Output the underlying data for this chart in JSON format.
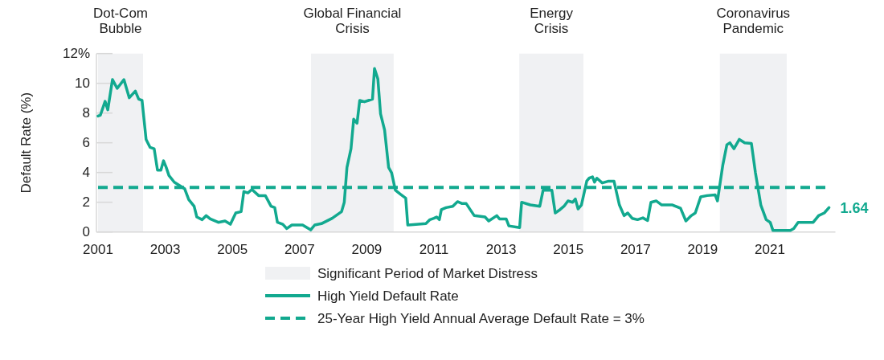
{
  "chart_data": {
    "type": "line",
    "ylabel": "Default Rate (%)",
    "xlim": [
      2001,
      2022.95
    ],
    "ylim": [
      0,
      12
    ],
    "xticks": [
      2001,
      2003,
      2005,
      2007,
      2009,
      2011,
      2013,
      2015,
      2017,
      2019,
      2021
    ],
    "yticks": [
      0,
      2,
      4,
      6,
      8,
      10,
      {
        "value": 12,
        "label": "12%"
      }
    ],
    "legend": "bottom",
    "series": [
      {
        "name": "High Yield Default Rate",
        "color": "#12a98f",
        "x": [
          2001.0,
          2001.07,
          2001.21,
          2001.29,
          2001.43,
          2001.57,
          2001.77,
          2001.93,
          2002.11,
          2002.21,
          2002.31,
          2002.43,
          2002.55,
          2002.67,
          2002.77,
          2002.87,
          2002.95,
          2003.03,
          2003.11,
          2003.27,
          2003.46,
          2003.58,
          2003.7,
          2003.86,
          2003.94,
          2004.1,
          2004.22,
          2004.34,
          2004.58,
          2004.78,
          2004.94,
          2005.1,
          2005.26,
          2005.34,
          2005.46,
          2005.58,
          2005.78,
          2005.98,
          2006.15,
          2006.26,
          2006.34,
          2006.5,
          2006.62,
          2006.77,
          2007.09,
          2007.33,
          2007.45,
          2007.65,
          2007.97,
          2008.25,
          2008.33,
          2008.41,
          2008.53,
          2008.61,
          2008.71,
          2008.79,
          2008.93,
          2009.05,
          2009.17,
          2009.23,
          2009.33,
          2009.41,
          2009.53,
          2009.65,
          2009.74,
          2009.85,
          2010.0,
          2010.16,
          2010.22,
          2010.76,
          2010.88,
          2011.0,
          2011.08,
          2011.16,
          2011.22,
          2011.36,
          2011.56,
          2011.7,
          2011.84,
          2011.96,
          2012.04,
          2012.2,
          2012.52,
          2012.63,
          2012.87,
          2012.95,
          2013.15,
          2013.23,
          2013.55,
          2013.61,
          2013.87,
          2014.15,
          2014.25,
          2014.51,
          2014.61,
          2014.75,
          2014.87,
          2014.99,
          2015.13,
          2015.21,
          2015.29,
          2015.39,
          2015.55,
          2015.62,
          2015.72,
          2015.78,
          2015.85,
          2016.01,
          2016.18,
          2016.36,
          2016.52,
          2016.66,
          2016.77,
          2016.9,
          2017.06,
          2017.22,
          2017.36,
          2017.46,
          2017.62,
          2017.78,
          2018.1,
          2018.34,
          2018.5,
          2018.66,
          2018.78,
          2018.94,
          2019.13,
          2019.37,
          2019.44,
          2019.6,
          2019.72,
          2019.81,
          2019.93,
          2020.09,
          2020.25,
          2020.45,
          2020.57,
          2020.73,
          2020.89,
          2021.01,
          2021.09,
          2021.29,
          2021.61,
          2021.71,
          2021.84,
          2022.29,
          2022.45,
          2022.62,
          2022.76
        ],
        "values": [
          7.8,
          7.86,
          8.79,
          8.22,
          10.25,
          9.66,
          10.25,
          9.03,
          9.48,
          8.94,
          8.85,
          6.23,
          5.69,
          5.6,
          4.16,
          4.16,
          4.79,
          4.34,
          3.8,
          3.35,
          3.08,
          2.9,
          2.18,
          1.73,
          1.01,
          0.83,
          1.1,
          0.88,
          0.65,
          0.74,
          0.52,
          1.28,
          1.37,
          2.72,
          2.63,
          2.86,
          2.45,
          2.45,
          1.73,
          1.64,
          0.65,
          0.52,
          0.23,
          0.47,
          0.47,
          0.14,
          0.47,
          0.56,
          0.92,
          1.37,
          2.0,
          4.34,
          5.6,
          7.59,
          7.32,
          8.85,
          8.76,
          8.85,
          8.94,
          11.0,
          10.29,
          7.95,
          6.86,
          4.34,
          3.98,
          2.81,
          2.54,
          2.27,
          0.47,
          0.56,
          0.83,
          0.92,
          1.01,
          0.83,
          1.5,
          1.64,
          1.73,
          2.04,
          1.91,
          1.91,
          1.64,
          1.1,
          1.01,
          0.74,
          1.1,
          0.88,
          0.88,
          0.41,
          0.29,
          2.0,
          1.82,
          1.73,
          2.81,
          2.81,
          1.28,
          1.5,
          1.73,
          2.09,
          2.0,
          2.22,
          1.55,
          1.82,
          3.44,
          3.62,
          3.71,
          3.35,
          3.62,
          3.3,
          3.41,
          3.41,
          1.82,
          1.1,
          1.28,
          0.92,
          0.83,
          0.95,
          0.77,
          2.0,
          2.09,
          1.82,
          1.82,
          1.6,
          0.74,
          1.1,
          1.28,
          2.36,
          2.45,
          2.5,
          2.09,
          4.52,
          5.87,
          6.0,
          5.6,
          6.23,
          6.0,
          5.96,
          3.98,
          1.82,
          0.83,
          0.65,
          0.11,
          0.1,
          0.1,
          0.23,
          0.65,
          0.65,
          1.1,
          1.28,
          1.64
        ]
      }
    ],
    "ref_lines": [
      {
        "axis": "y",
        "value": 3,
        "label": "25-Year High Yield Annual Average Default Rate = 3%",
        "color": "#12a98f",
        "line_style": "dashed"
      }
    ],
    "bands": [
      {
        "axis": "x",
        "from": 2001,
        "to": 2002.34,
        "label": "Dot-Com\nBubble",
        "color": "#f0f1f3"
      },
      {
        "axis": "x",
        "from": 2007.34,
        "to": 2009.8,
        "label": "Global Financial\nCrisis",
        "color": "#f0f1f3"
      },
      {
        "axis": "x",
        "from": 2013.54,
        "to": 2015.45,
        "label": "Energy\nCrisis",
        "color": "#f0f1f3"
      },
      {
        "axis": "x",
        "from": 2019.51,
        "to": 2021.5,
        "label": "Coronavirus\nPandemic",
        "color": "#f0f1f3"
      }
    ],
    "annotations": [
      {
        "text": "1.64",
        "x": 2022.76,
        "y": 1.64
      },
      "Significant Period of Market Distress"
    ]
  }
}
